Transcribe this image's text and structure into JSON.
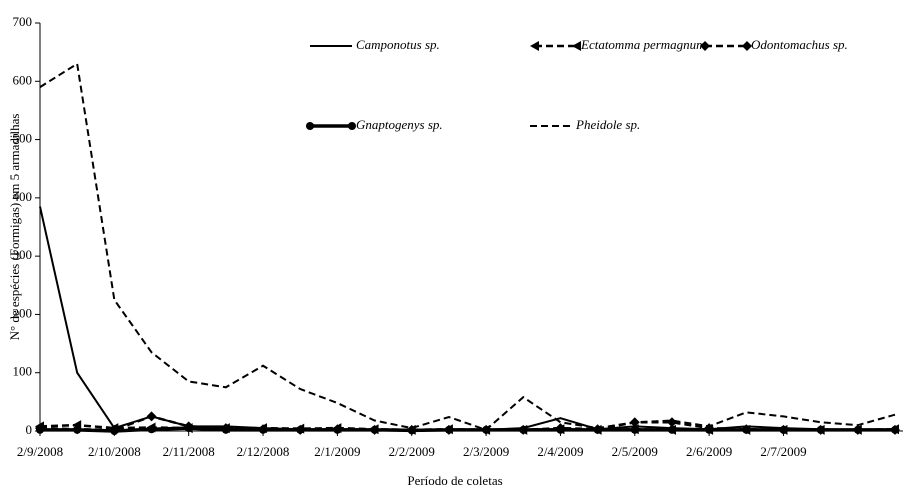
{
  "chart_data": {
    "type": "line",
    "xlabel": "Período de coletas",
    "ylabel": "N° de espécies (Formigas) em 5 armadilhas",
    "categories": [
      "2/9/2008",
      null,
      "2/10/2008",
      null,
      "2/11/2008",
      null,
      "2/12/2008",
      null,
      "2/1/2009",
      null,
      "2/2/2009",
      null,
      "2/3/2009",
      null,
      "2/4/2009",
      null,
      "2/5/2009",
      null,
      "2/6/2009",
      null,
      "2/7/2009",
      null,
      null,
      null
    ],
    "ylim": [
      0,
      700
    ],
    "yticks": [
      0,
      100,
      200,
      300,
      400,
      500,
      600,
      700
    ],
    "series": [
      {
        "name": "Camponotus sp.",
        "color": "#000000",
        "dash": "solid",
        "width": 2,
        "marker": "none",
        "values": [
          385,
          100,
          5,
          25,
          8,
          8,
          5,
          3,
          2,
          2,
          2,
          2,
          2,
          5,
          22,
          3,
          8,
          5,
          3,
          8,
          5,
          3,
          2,
          2
        ]
      },
      {
        "name": "Ectatomma permagnum",
        "color": "#000000",
        "dash": "dashed",
        "width": 2.5,
        "marker": "triangle",
        "values": [
          8,
          10,
          5,
          6,
          5,
          5,
          5,
          4,
          5,
          3,
          2,
          3,
          2,
          2,
          3,
          2,
          3,
          2,
          2,
          2,
          2,
          2,
          2,
          3
        ]
      },
      {
        "name": "Odontomachus sp.",
        "color": "#000000",
        "dash": "dashed",
        "width": 2.5,
        "marker": "diamond",
        "values": [
          5,
          3,
          2,
          25,
          8,
          5,
          3,
          2,
          3,
          2,
          2,
          2,
          2,
          2,
          5,
          3,
          15,
          15,
          5,
          3,
          2,
          2,
          2,
          2
        ]
      },
      {
        "name": "Gnaptogenys sp.",
        "color": "#000000",
        "dash": "solid",
        "width": 3.5,
        "marker": "circle",
        "values": [
          2,
          2,
          0,
          3,
          5,
          2,
          2,
          2,
          2,
          2,
          1,
          2,
          2,
          2,
          2,
          2,
          2,
          2,
          2,
          2,
          2,
          2,
          2,
          2
        ]
      },
      {
        "name": "Pheidole sp.",
        "color": "#000000",
        "dash": "dashed",
        "width": 2,
        "marker": "none",
        "values": [
          590,
          630,
          225,
          135,
          85,
          75,
          112,
          72,
          48,
          18,
          5,
          24,
          2,
          58,
          15,
          5,
          15,
          18,
          8,
          32,
          25,
          15,
          10,
          28
        ]
      }
    ]
  }
}
